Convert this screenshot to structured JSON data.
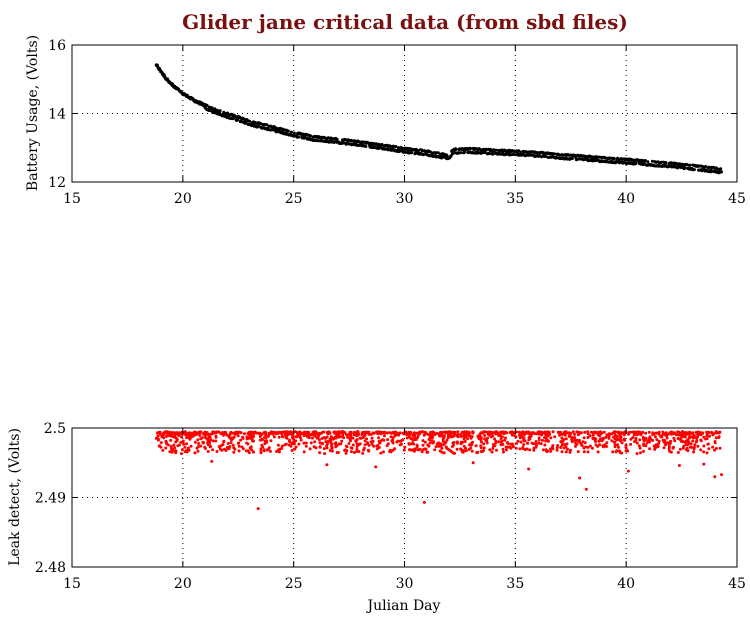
{
  "figure": {
    "title": "Glider jane critical data (from sbd files)",
    "title_color": "#7a1010"
  },
  "chart_data": [
    {
      "type": "scatter",
      "title": "",
      "xlabel": "",
      "ylabel": "Battery Usage, (Volts)",
      "xlim": [
        15,
        45
      ],
      "ylim": [
        12,
        16
      ],
      "xticks": [
        15,
        20,
        25,
        30,
        35,
        40,
        45
      ],
      "yticks": [
        12,
        14,
        16
      ],
      "xtick_labels": [
        "15",
        "20",
        "25",
        "30",
        "35",
        "40",
        "45"
      ],
      "ytick_labels": [
        "12",
        "14",
        "16"
      ],
      "grid": true,
      "marker_color": "#000000",
      "series": [
        {
          "x": [
            18.8,
            19.0,
            19.3,
            19.6,
            20.0,
            20.5,
            21.0,
            21.5,
            22.0,
            22.5,
            23.0,
            24.0,
            25.0,
            26.0,
            27.0,
            28.0,
            29.0,
            30.0,
            31.0,
            32.0,
            32.2,
            33.0,
            34.0,
            35.0,
            36.0,
            37.0,
            38.0,
            39.0,
            40.0,
            41.0,
            42.0,
            43.0,
            44.0,
            44.3
          ],
          "y": [
            15.45,
            15.25,
            15.0,
            14.8,
            14.6,
            14.4,
            14.25,
            14.1,
            14.0,
            13.9,
            13.78,
            13.62,
            13.45,
            13.32,
            13.25,
            13.17,
            13.08,
            12.98,
            12.9,
            12.78,
            12.95,
            12.97,
            12.93,
            12.9,
            12.86,
            12.8,
            12.76,
            12.7,
            12.66,
            12.6,
            12.55,
            12.48,
            12.4,
            12.38
          ]
        }
      ]
    },
    {
      "type": "scatter",
      "title": "",
      "xlabel": "Julian Day",
      "ylabel": "Leak detect, (Volts)",
      "xlim": [
        15,
        45
      ],
      "ylim": [
        2.48,
        2.5
      ],
      "xticks": [
        15,
        20,
        25,
        30,
        35,
        40,
        45
      ],
      "yticks": [
        2.48,
        2.49,
        2.5
      ],
      "xtick_labels": [
        "15",
        "20",
        "25",
        "30",
        "35",
        "40",
        "45"
      ],
      "ytick_labels": [
        "2.48",
        "2.49",
        "2.5"
      ],
      "grid": true,
      "marker_color": "#ff0000",
      "series": [
        {
          "x_range": [
            18.8,
            44.3
          ],
          "y_band": [
            2.4965,
            2.4998
          ],
          "y_typical_top": 2.4995,
          "outliers": [
            {
              "x": 23.4,
              "y": 2.4884
            },
            {
              "x": 30.9,
              "y": 2.4893
            },
            {
              "x": 38.2,
              "y": 2.4912
            },
            {
              "x": 37.9,
              "y": 2.4928
            },
            {
              "x": 44.3,
              "y": 2.4933
            },
            {
              "x": 44.0,
              "y": 2.493
            },
            {
              "x": 40.1,
              "y": 2.4938
            },
            {
              "x": 35.6,
              "y": 2.4941
            },
            {
              "x": 28.7,
              "y": 2.4944
            },
            {
              "x": 26.5,
              "y": 2.4947
            },
            {
              "x": 42.4,
              "y": 2.4946
            },
            {
              "x": 21.3,
              "y": 2.4952
            },
            {
              "x": 33.1,
              "y": 2.495
            },
            {
              "x": 43.5,
              "y": 2.4948
            }
          ]
        }
      ]
    }
  ]
}
